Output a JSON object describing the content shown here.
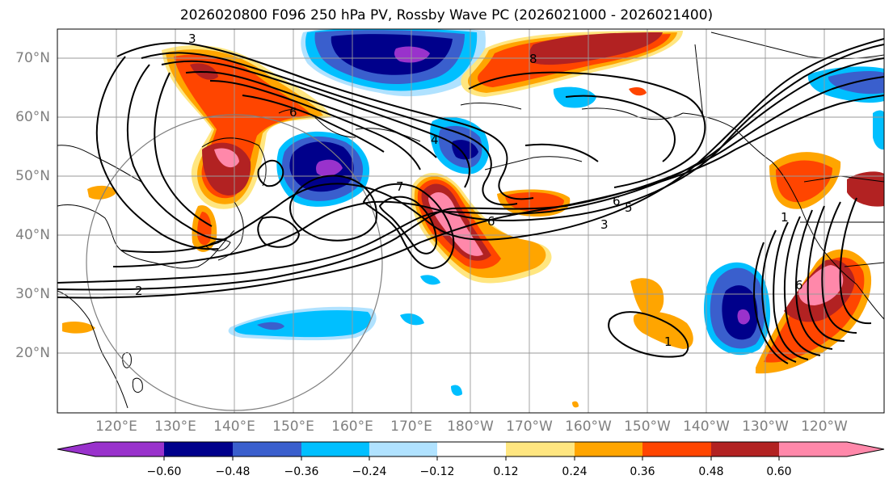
{
  "title": "2026020800 F096 250 hPa PV, Rossby Wave PC (2026021000 - 2026021400)",
  "latitude_labels": [
    "70°N",
    "60°N",
    "50°N",
    "40°N",
    "30°N",
    "20°N"
  ],
  "longitude_labels": [
    "120°E",
    "130°E",
    "140°E",
    "150°E",
    "160°E",
    "170°E",
    "180°W",
    "170°W",
    "160°W",
    "150°W",
    "140°W",
    "130°W",
    "120°W"
  ],
  "contour_labels": [
    "3",
    "6",
    "7",
    "4",
    "6",
    "5",
    "3",
    "1",
    "2",
    "8",
    "6",
    "1",
    "6"
  ],
  "colorbar": {
    "tick_labels": [
      "−0.60",
      "−0.48",
      "−0.36",
      "−0.24",
      "−0.12",
      "0.12",
      "0.24",
      "0.36",
      "0.48",
      "0.60"
    ],
    "colors": [
      "#9932cc",
      "#00008b",
      "#3a5fcd",
      "#00bfff",
      "#b0e2ff",
      "#ffffff",
      "#ffe680",
      "#ffa500",
      "#ff4500",
      "#b22222",
      "#ff88aa"
    ]
  },
  "colors": {
    "purple": "#9932cc",
    "navy": "#00008b",
    "blue": "#3a5fcd",
    "cyan": "#00bfff",
    "light_blue": "#b0e2ff",
    "yellow": "#ffe680",
    "orange": "#ffa500",
    "red_orange": "#ff4500",
    "firebrick": "#b22222",
    "pink": "#ff88aa"
  }
}
